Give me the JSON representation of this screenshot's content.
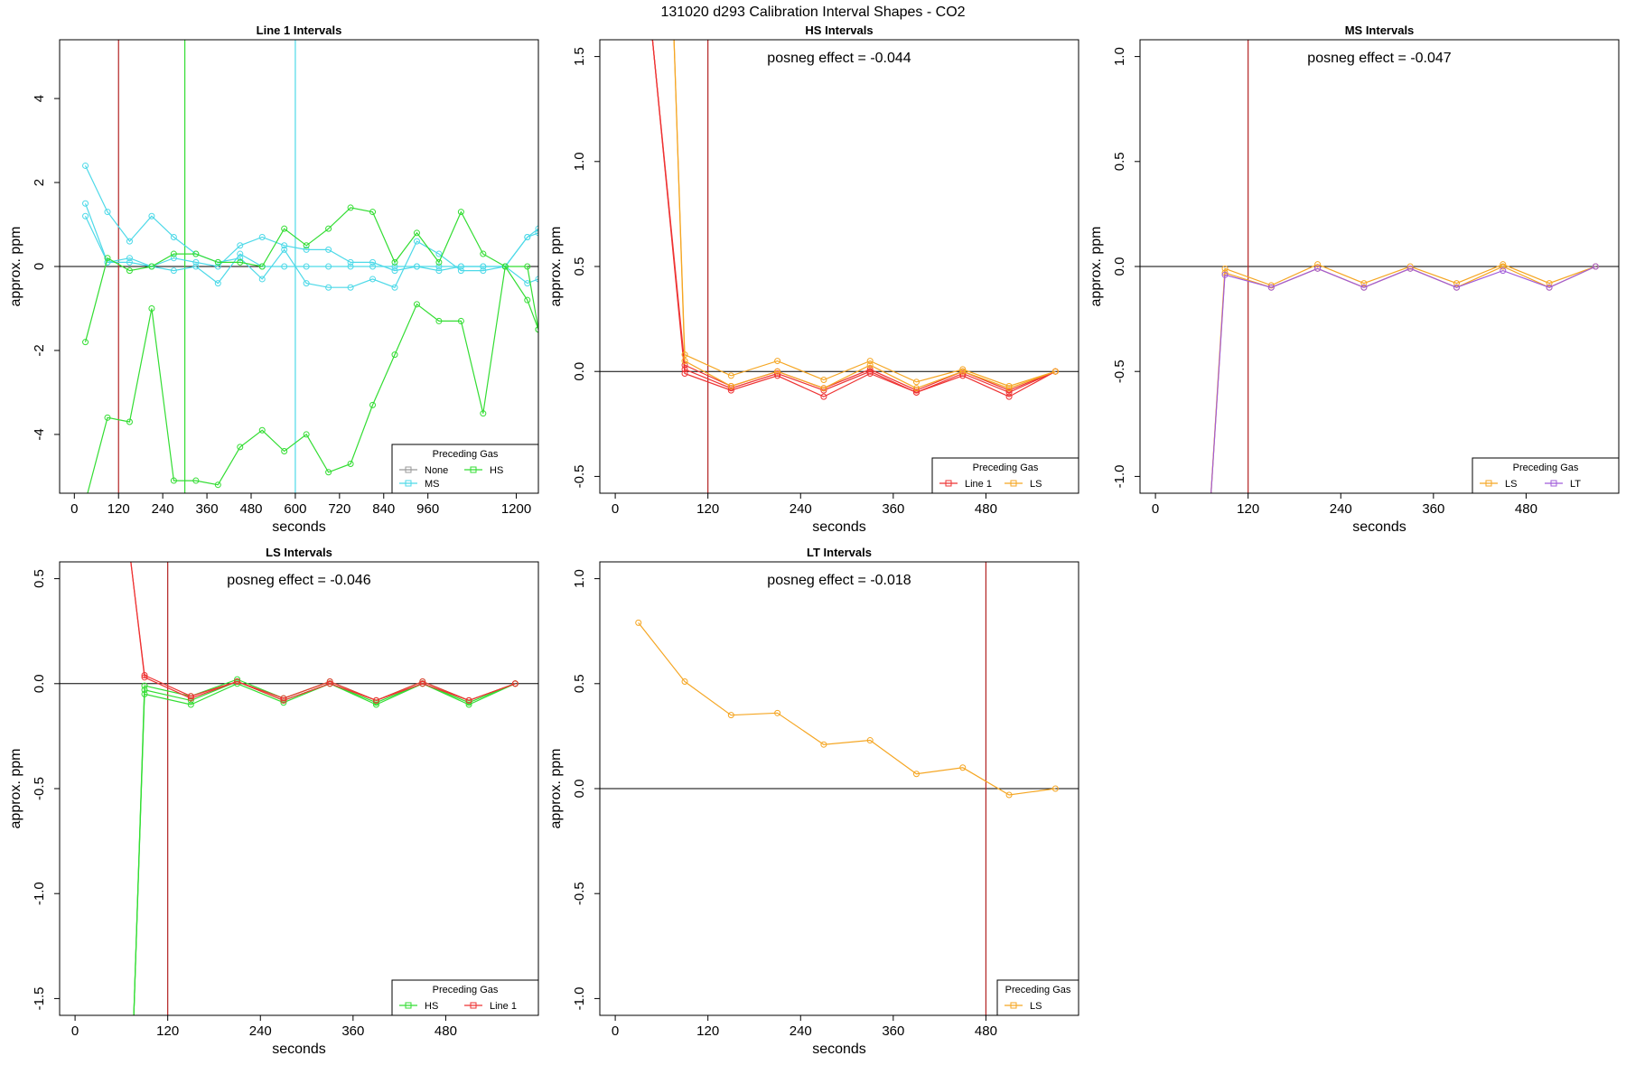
{
  "page": {
    "title": "131020  d293   Calibration Interval Shapes - CO2"
  },
  "colors": {
    "None": "#999999",
    "MS": "#4dd9e8",
    "HS": "#33dd33",
    "Line 1": "#ee3333",
    "LS": "#f5a623",
    "LT": "#a15cd9",
    "axis": "#000000",
    "vline_red": "#b22222"
  },
  "chart_data": [
    {
      "type": "line",
      "title": "Line 1 Intervals",
      "xlabel": "seconds",
      "ylabel": "approx. ppm",
      "annotation": "",
      "xlim": [
        -40,
        1260
      ],
      "ylim": [
        -5.4,
        5.4
      ],
      "xticks": [
        0,
        120,
        240,
        360,
        480,
        600,
        720,
        840,
        960,
        1200
      ],
      "yticks": [
        -4,
        -2,
        0,
        2,
        4
      ],
      "hline": 0,
      "vlines": [
        {
          "x": 120,
          "color": "#b22222"
        },
        {
          "x": 300,
          "color": "#33dd33"
        },
        {
          "x": 600,
          "color": "#4dd9e8"
        }
      ],
      "legend": {
        "title": "Preceding Gas",
        "placement": "bottom-right",
        "columns": 2,
        "entries": [
          "None",
          "HS",
          "MS"
        ]
      },
      "series": [
        {
          "color": "#4dd9e8",
          "x": [
            30,
            90,
            150,
            210,
            270,
            330,
            390,
            450,
            510,
            570,
            630,
            690,
            750,
            810,
            870,
            930,
            990,
            1050,
            1110,
            1170,
            1230,
            1260
          ],
          "y": [
            2.4,
            1.3,
            0.6,
            1.2,
            0.7,
            0.3,
            0.1,
            0.2,
            -0.3,
            0.4,
            -0.4,
            -0.5,
            -0.5,
            -0.3,
            -0.5,
            0.6,
            0.3,
            -0.1,
            -0.1,
            0,
            0.7,
            0.9
          ]
        },
        {
          "color": "#4dd9e8",
          "x": [
            30,
            90,
            150,
            210,
            270,
            330,
            390,
            450,
            510,
            570,
            630,
            690,
            750,
            810,
            870,
            930,
            990,
            1050,
            1110,
            1170,
            1230,
            1260
          ],
          "y": [
            1.5,
            0.1,
            0.2,
            0,
            0.2,
            0.1,
            0,
            0.5,
            0.7,
            0.5,
            0.4,
            0.4,
            0.1,
            0.1,
            -0.1,
            0,
            0,
            0,
            0,
            0,
            -0.4,
            -0.3
          ]
        },
        {
          "color": "#4dd9e8",
          "x": [
            30,
            90,
            150,
            210,
            270,
            330,
            390,
            450,
            510,
            570,
            630,
            690,
            750,
            810,
            870,
            930,
            990,
            1050,
            1110,
            1170,
            1230,
            1260
          ],
          "y": [
            1.2,
            0.1,
            0.1,
            0,
            -0.1,
            0,
            -0.4,
            0.3,
            0,
            0,
            0,
            0,
            0,
            0,
            0,
            0,
            -0.1,
            0,
            0,
            0,
            0.7,
            0.8
          ]
        },
        {
          "color": "#33dd33",
          "x": [
            30,
            90,
            150,
            210,
            270,
            330,
            390,
            450,
            510,
            570,
            630,
            690,
            750,
            810,
            870,
            930,
            990,
            1050,
            1110,
            1170,
            1230,
            1260
          ],
          "y": [
            -1.8,
            0.2,
            -0.1,
            0,
            0.3,
            0.3,
            0.1,
            0.1,
            0,
            0.9,
            0.5,
            0.9,
            1.4,
            1.3,
            0.1,
            0.8,
            0.1,
            1.3,
            0.3,
            0,
            0,
            -1.5
          ]
        },
        {
          "color": "#33dd33",
          "x": [
            30,
            90,
            150,
            210,
            270,
            330,
            390,
            450,
            510,
            570,
            630,
            690,
            750,
            810,
            870,
            930,
            990,
            1050,
            1110,
            1170,
            1230,
            1260
          ],
          "y": [
            -5.6,
            -3.6,
            -3.7,
            -1,
            -5.1,
            -5.1,
            -5.2,
            -4.3,
            -3.9,
            -4.4,
            -4,
            -4.9,
            -4.7,
            -3.3,
            -2.1,
            -0.9,
            -1.3,
            -1.3,
            -3.5,
            0,
            -0.8,
            -1.5
          ]
        }
      ]
    },
    {
      "type": "line",
      "title": "HS Intervals",
      "xlabel": "seconds",
      "ylabel": "approx. ppm",
      "annotation": "posneg effect = -0.044",
      "xlim": [
        -20,
        600
      ],
      "ylim": [
        -0.58,
        1.58
      ],
      "xticks": [
        0,
        120,
        240,
        360,
        480
      ],
      "yticks": [
        -0.5,
        0.0,
        0.5,
        1.0,
        1.5
      ],
      "ytick_labels": [
        "-0.5",
        "0.0",
        "0.5",
        "1.0",
        "1.5"
      ],
      "hline": 0,
      "vlines": [
        {
          "x": 120,
          "color": "#b22222"
        }
      ],
      "legend": {
        "title": "Preceding Gas",
        "placement": "bottom-right",
        "columns": 2,
        "entries": [
          "Line 1",
          "LS"
        ]
      },
      "series": [
        {
          "color": "#ee3333",
          "x": [
            45,
            90,
            150,
            210,
            270,
            330,
            390,
            450,
            510,
            570
          ],
          "y": [
            1.7,
            0.03,
            -0.07,
            0,
            -0.08,
            0.01,
            -0.09,
            0,
            -0.09,
            0
          ]
        },
        {
          "color": "#ee3333",
          "x": [
            45,
            90,
            150,
            210,
            270,
            330,
            390,
            450,
            510,
            570
          ],
          "y": [
            1.7,
            0.01,
            -0.08,
            -0.01,
            -0.09,
            0,
            -0.1,
            -0.01,
            -0.1,
            0
          ]
        },
        {
          "color": "#ee3333",
          "x": [
            45,
            90,
            150,
            210,
            270,
            330,
            390,
            450,
            510,
            570
          ],
          "y": [
            1.7,
            -0.01,
            -0.09,
            -0.02,
            -0.12,
            -0.01,
            -0.1,
            -0.02,
            -0.12,
            0
          ]
        },
        {
          "color": "#f5a623",
          "x": [
            75,
            90,
            150,
            210,
            270,
            330,
            390,
            450,
            510,
            570
          ],
          "y": [
            1.7,
            0.08,
            -0.02,
            0.05,
            -0.04,
            0.05,
            -0.05,
            0.01,
            -0.07,
            0
          ]
        },
        {
          "color": "#f5a623",
          "x": [
            75,
            90,
            150,
            210,
            270,
            330,
            390,
            450,
            510,
            570
          ],
          "y": [
            1.7,
            0.05,
            -0.07,
            0,
            -0.08,
            0.03,
            -0.08,
            0,
            -0.08,
            0
          ]
        }
      ]
    },
    {
      "type": "line",
      "title": "MS Intervals",
      "xlabel": "seconds",
      "ylabel": "approx. ppm",
      "annotation": "posneg effect = -0.047",
      "xlim": [
        -20,
        600
      ],
      "ylim": [
        -1.08,
        1.08
      ],
      "xticks": [
        0,
        120,
        240,
        360,
        480
      ],
      "yticks": [
        -1.0,
        -0.5,
        0.0,
        0.5,
        1.0
      ],
      "ytick_labels": [
        "-1.0",
        "-0.5",
        "0.0",
        "0.5",
        "1.0"
      ],
      "hline": 0,
      "vlines": [
        {
          "x": 120,
          "color": "#b22222"
        }
      ],
      "legend": {
        "title": "Preceding Gas",
        "placement": "bottom-right",
        "columns": 2,
        "entries": [
          "LS",
          "LT"
        ]
      },
      "series": [
        {
          "color": "#f5a623",
          "x": [
            70,
            90,
            150,
            210,
            270,
            330,
            390,
            450,
            510,
            570
          ],
          "y": [
            -1.2,
            -0.01,
            -0.09,
            0.01,
            -0.08,
            0,
            -0.08,
            0.01,
            -0.08,
            0
          ]
        },
        {
          "color": "#f5a623",
          "x": [
            70,
            90,
            150,
            210,
            270,
            330,
            390,
            450,
            510,
            570
          ],
          "y": [
            -1.2,
            -0.03,
            -0.1,
            -0.01,
            -0.1,
            -0.01,
            -0.1,
            0,
            -0.1,
            0
          ]
        },
        {
          "color": "#a15cd9",
          "x": [
            70,
            90,
            150,
            210,
            270,
            330,
            390,
            450,
            510,
            570
          ],
          "y": [
            -1.2,
            -0.04,
            -0.1,
            -0.01,
            -0.1,
            -0.01,
            -0.1,
            -0.02,
            -0.1,
            0
          ]
        }
      ]
    },
    {
      "type": "line",
      "title": "LS Intervals",
      "xlabel": "seconds",
      "ylabel": "approx. ppm",
      "annotation": "posneg effect = -0.046",
      "xlim": [
        -20,
        600
      ],
      "ylim": [
        -1.58,
        0.58
      ],
      "xticks": [
        0,
        120,
        240,
        360,
        480
      ],
      "yticks": [
        -1.5,
        -1.0,
        -0.5,
        0.0,
        0.5
      ],
      "ytick_labels": [
        "-1.5",
        "-1.0",
        "-0.5",
        "0.0",
        "0.5"
      ],
      "hline": 0,
      "vlines": [
        {
          "x": 120,
          "color": "#b22222"
        }
      ],
      "legend": {
        "title": "Preceding Gas",
        "placement": "bottom-right",
        "columns": 2,
        "entries": [
          "HS",
          "Line 1"
        ]
      },
      "series": [
        {
          "color": "#33dd33",
          "x": [
            75,
            90,
            150,
            210,
            270,
            330,
            390,
            450,
            510,
            570
          ],
          "y": [
            -1.7,
            -0.01,
            -0.06,
            0.02,
            -0.07,
            0.01,
            -0.08,
            0.01,
            -0.08,
            0
          ]
        },
        {
          "color": "#33dd33",
          "x": [
            75,
            90,
            150,
            210,
            270,
            330,
            390,
            450,
            510,
            570
          ],
          "y": [
            -1.7,
            -0.03,
            -0.08,
            0.01,
            -0.08,
            0,
            -0.09,
            0,
            -0.09,
            0
          ]
        },
        {
          "color": "#33dd33",
          "x": [
            75,
            90,
            150,
            210,
            270,
            330,
            390,
            450,
            510,
            570
          ],
          "y": [
            -1.7,
            -0.05,
            -0.1,
            0,
            -0.09,
            0,
            -0.1,
            0,
            -0.1,
            0
          ]
        },
        {
          "color": "#ee3333",
          "x": [
            70,
            90,
            150,
            210,
            270,
            330,
            390,
            450,
            510,
            570
          ],
          "y": [
            0.65,
            0.04,
            -0.06,
            0.01,
            -0.07,
            0.01,
            -0.08,
            0.01,
            -0.08,
            0
          ]
        },
        {
          "color": "#ee3333",
          "x": [
            70,
            90,
            150,
            210,
            270,
            330,
            390,
            450,
            510,
            570
          ],
          "y": [
            0.65,
            0.03,
            -0.07,
            0.01,
            -0.08,
            0,
            -0.08,
            0,
            -0.08,
            0
          ]
        }
      ]
    },
    {
      "type": "line",
      "title": "LT Intervals",
      "xlabel": "seconds",
      "ylabel": "approx. ppm",
      "annotation": "posneg effect = -0.018",
      "xlim": [
        -20,
        600
      ],
      "ylim": [
        -1.08,
        1.08
      ],
      "xticks": [
        0,
        120,
        240,
        360,
        480
      ],
      "yticks": [
        -1.0,
        -0.5,
        0.0,
        0.5,
        1.0
      ],
      "ytick_labels": [
        "-1.0",
        "-0.5",
        "0.0",
        "0.5",
        "1.0"
      ],
      "hline": 0,
      "vlines": [
        {
          "x": 480,
          "color": "#b22222"
        }
      ],
      "legend": {
        "title": "Preceding Gas",
        "placement": "bottom-right",
        "columns": 1,
        "entries": [
          "LS"
        ]
      },
      "series": [
        {
          "color": "#f5a623",
          "x": [
            30,
            90,
            150,
            210,
            270,
            330,
            390,
            450,
            510,
            570
          ],
          "y": [
            0.79,
            0.51,
            0.35,
            0.36,
            0.21,
            0.23,
            0.07,
            0.1,
            -0.03,
            0
          ]
        }
      ]
    }
  ]
}
